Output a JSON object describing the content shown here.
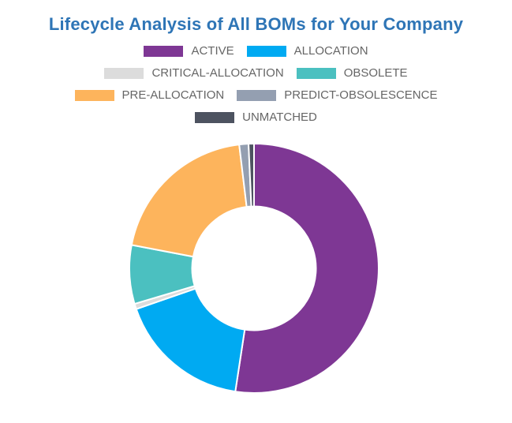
{
  "title": "Lifecycle Analysis of All BOMs for Your Company",
  "title_color": "#2E75B6",
  "legend": {
    "text_color": "#666666",
    "items": [
      {
        "label": "ACTIVE",
        "color": "#7E3794"
      },
      {
        "label": "ALLOCATION",
        "color": "#00AAF2"
      },
      {
        "label": "CRITICAL-ALLOCATION",
        "color": "#DCDCDC"
      },
      {
        "label": "OBSOLETE",
        "color": "#4BC0C0"
      },
      {
        "label": "PRE-ALLOCATION",
        "color": "#FDB45C"
      },
      {
        "label": "PREDICT-OBSOLESCENCE",
        "color": "#949FB1"
      },
      {
        "label": "UNMATCHED",
        "color": "#4D5360"
      }
    ]
  },
  "chart_data": {
    "type": "pie",
    "subtype": "donut",
    "title": "Lifecycle Analysis of All BOMs for Your Company",
    "categories": [
      "ACTIVE",
      "ALLOCATION",
      "CRITICAL-ALLOCATION",
      "OBSOLETE",
      "PRE-ALLOCATION",
      "PREDICT-OBSOLESCENCE",
      "UNMATCHED"
    ],
    "values": [
      52.4,
      17.3,
      0.7,
      7.6,
      20.1,
      1.2,
      0.7
    ],
    "unit": "percent-estimated-from-arc-angles",
    "colors": [
      "#7E3794",
      "#00AAF2",
      "#DCDCDC",
      "#4BC0C0",
      "#FDB45C",
      "#949FB1",
      "#4D5360"
    ],
    "cutout_percent": 50,
    "start_angle_deg": 0,
    "direction": "clockwise",
    "legend_position": "top",
    "legend_rows": [
      [
        0,
        1
      ],
      [
        2,
        3
      ],
      [
        4,
        5
      ],
      [
        6
      ]
    ],
    "separator_color": "#ffffff",
    "background_color": "#ffffff"
  }
}
